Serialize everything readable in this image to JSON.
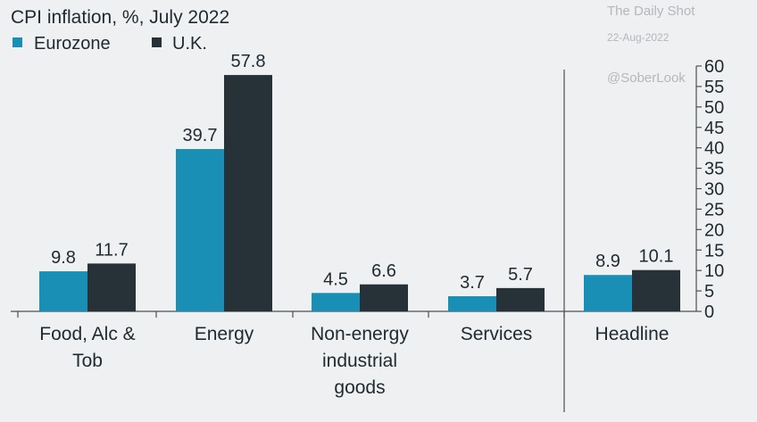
{
  "chart_data": {
    "type": "bar",
    "title": "CPI inflation, %, July 2022",
    "categories": [
      "Food, Alc & Tob",
      "Energy",
      "Non-energy industrial goods",
      "Services",
      "Headline"
    ],
    "category_lines": [
      [
        "Food, Alc &",
        "Tob"
      ],
      [
        "Energy"
      ],
      [
        "Non-energy",
        "industrial",
        "goods"
      ],
      [
        "Services"
      ],
      [
        "Headline"
      ]
    ],
    "series": [
      {
        "name": "Eurozone",
        "color": "#1a8fb5",
        "values": [
          9.8,
          39.7,
          4.5,
          3.7,
          8.9
        ]
      },
      {
        "name": "U.K.",
        "color": "#263238",
        "values": [
          11.7,
          57.8,
          6.6,
          5.7,
          10.1
        ]
      }
    ],
    "ylim": [
      0,
      60
    ],
    "yticks": [
      "0",
      "5",
      "10",
      "15",
      "20",
      "25",
      "30",
      "35",
      "40",
      "45",
      "50",
      "55",
      "60"
    ],
    "y_axis_side": "right",
    "legend_position": "top-left",
    "separator_before_category": "Headline",
    "grid": false
  },
  "watermark": {
    "source": "The Daily Shot",
    "date": "22-Aug-2022",
    "handle": "@SoberLook"
  }
}
